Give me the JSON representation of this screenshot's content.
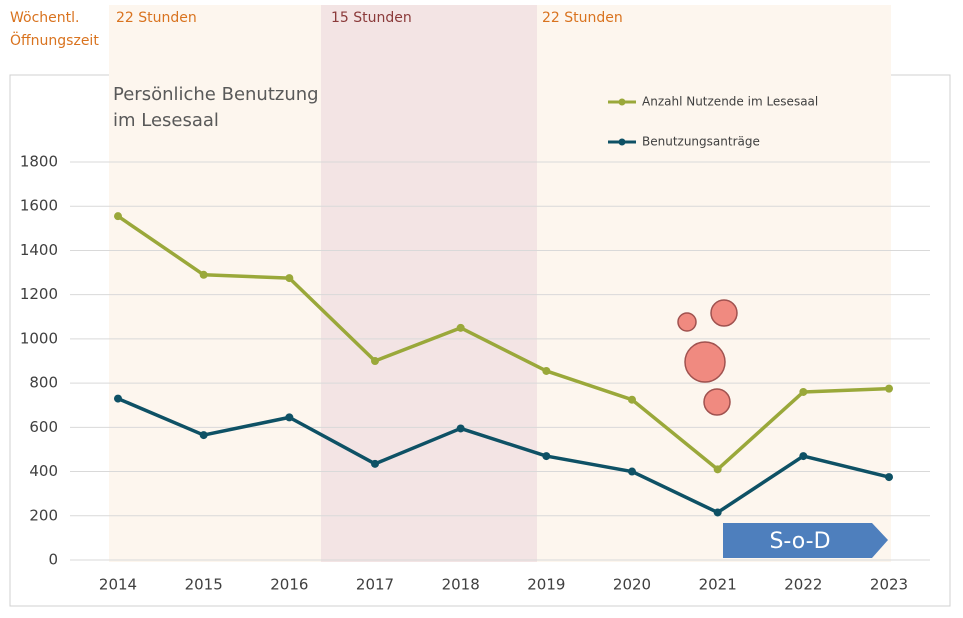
{
  "chart_data": {
    "type": "line",
    "opening_hours_label": [
      "Wöchentl.",
      "Öffnungszeit"
    ],
    "bands": [
      {
        "label": "22 Stunden"
      },
      {
        "label": "15 Stunden"
      },
      {
        "label": "22 Stunden"
      }
    ],
    "annotation": [
      "Persönliche Benutzung",
      "im Lesesaal"
    ],
    "badge": "S-o-D",
    "categories": [
      "2014",
      "2015",
      "2016",
      "2017",
      "2018",
      "2019",
      "2020",
      "2021",
      "2022",
      "2023"
    ],
    "series": [
      {
        "name": "Anzahl Nutzende im Lesesaal",
        "color": "#9aa83a",
        "values": [
          1555,
          1290,
          1275,
          900,
          1050,
          855,
          725,
          410,
          760,
          775
        ]
      },
      {
        "name": "Benutzungsanträge",
        "color": "#0e5165",
        "values": [
          730,
          565,
          645,
          435,
          595,
          470,
          400,
          215,
          470,
          375
        ]
      }
    ],
    "ylim": [
      0,
      1800
    ],
    "yticks": [
      0,
      200,
      400,
      600,
      800,
      1000,
      1200,
      1400,
      1600,
      1800
    ],
    "grid": true
  }
}
